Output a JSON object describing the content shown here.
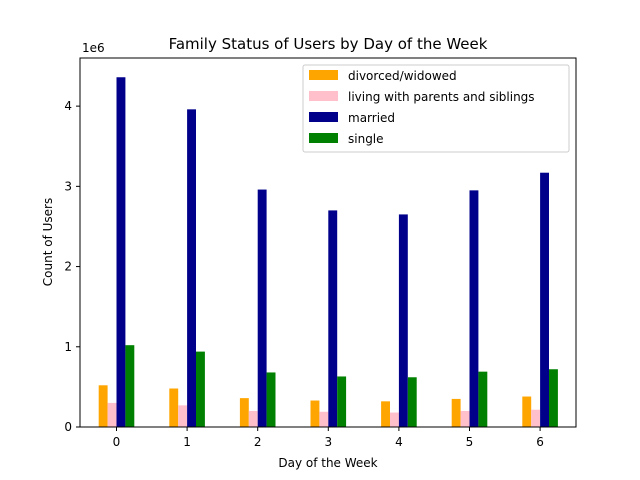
{
  "chart_data": {
    "type": "bar",
    "title": "Family Status of Users by Day of the Week",
    "xlabel": "Day of the Week",
    "ylabel": "Count of Users",
    "y_scale_label": "1e6",
    "categories": [
      "0",
      "1",
      "2",
      "3",
      "4",
      "5",
      "6"
    ],
    "ylim": [
      0,
      4600000
    ],
    "yticks": [
      0,
      1000000,
      2000000,
      3000000,
      4000000
    ],
    "ytick_labels": [
      "0",
      "1",
      "2",
      "3",
      "4"
    ],
    "grid": false,
    "legend_position": "top-right",
    "series": [
      {
        "name": "divorced/widowed",
        "color": "#ffa500",
        "values": [
          520000,
          480000,
          360000,
          330000,
          320000,
          350000,
          380000
        ]
      },
      {
        "name": "living with parents and siblings",
        "color": "#ffc0cb",
        "values": [
          300000,
          270000,
          200000,
          190000,
          180000,
          200000,
          215000
        ]
      },
      {
        "name": "married",
        "color": "#00008b",
        "values": [
          4360000,
          3960000,
          2960000,
          2700000,
          2650000,
          2950000,
          3170000
        ]
      },
      {
        "name": "single",
        "color": "#008000",
        "values": [
          1020000,
          940000,
          680000,
          630000,
          620000,
          690000,
          720000
        ]
      }
    ]
  }
}
